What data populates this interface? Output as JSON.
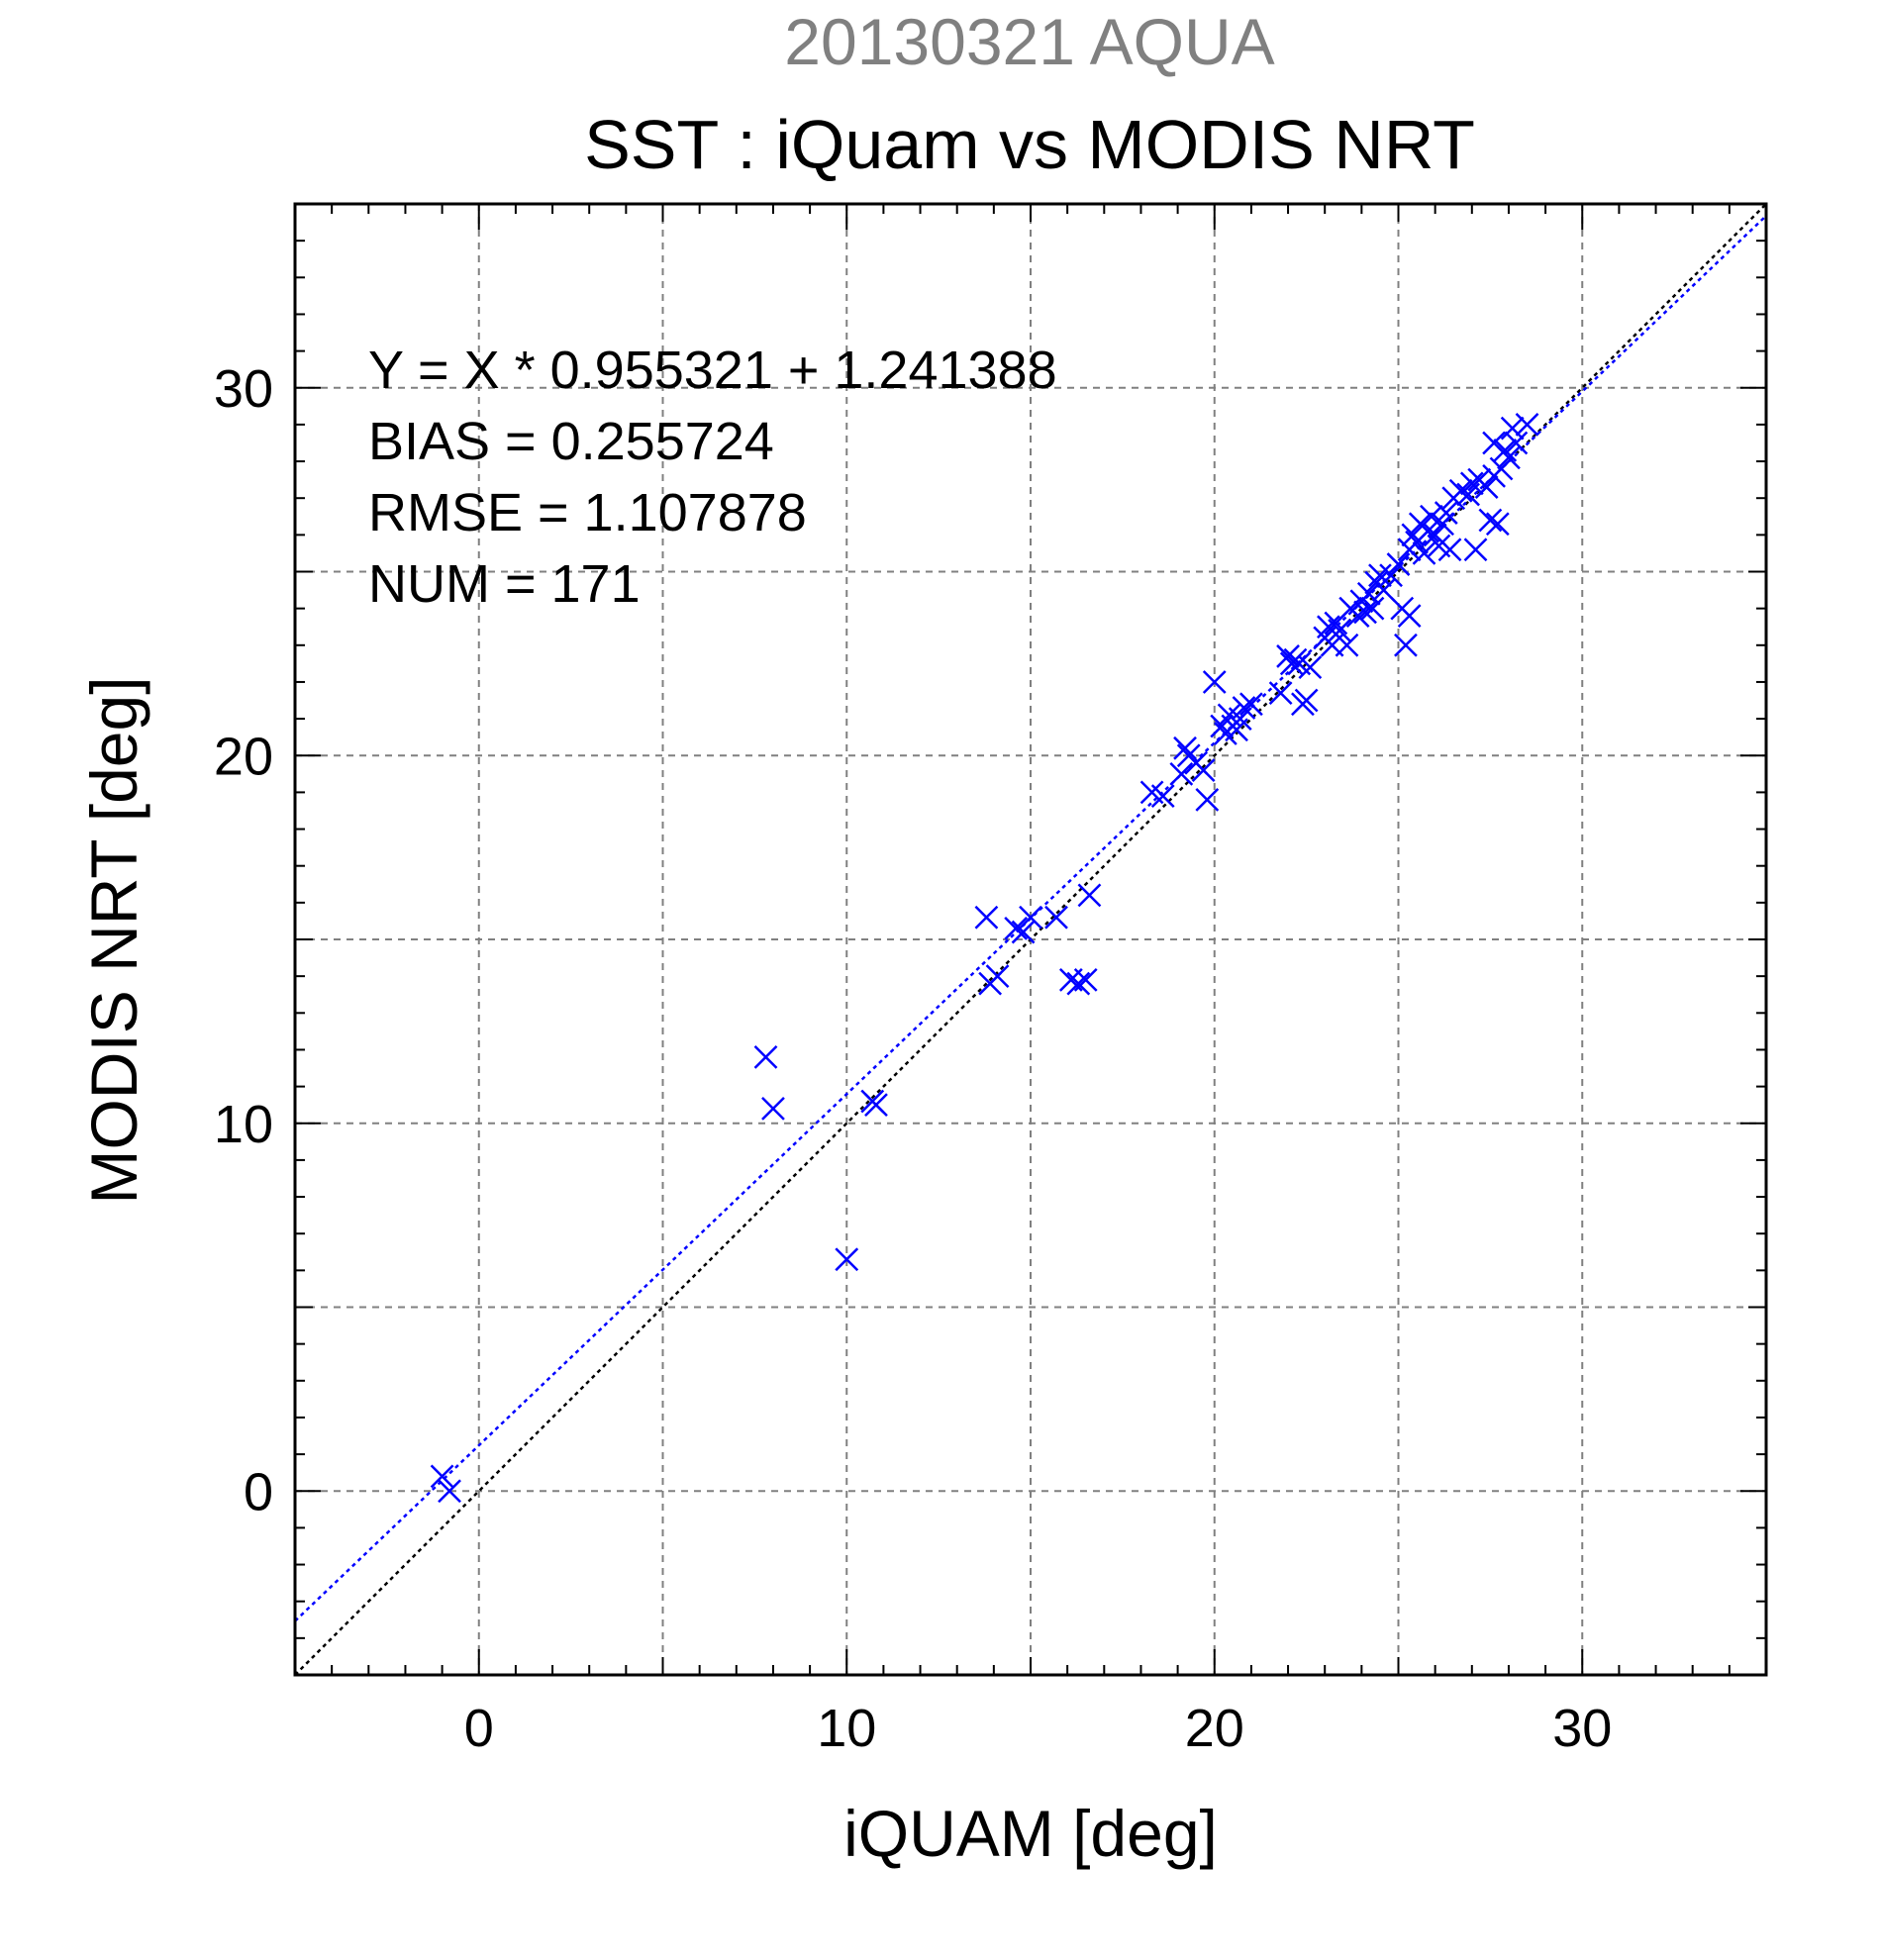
{
  "chart_data": {
    "type": "scatter",
    "supertitle": "20130321 AQUA",
    "title": "SST : iQuam vs MODIS NRT",
    "xlabel": "iQUAM [deg]",
    "ylabel": "MODIS NRT [deg]",
    "xlim": [
      -5,
      35
    ],
    "ylim": [
      -5,
      35
    ],
    "major_ticks": [
      0,
      10,
      20,
      30
    ],
    "grid_ticks": [
      0,
      5,
      10,
      15,
      20,
      25,
      30
    ],
    "minor_tick_step": 1,
    "grid": true,
    "stats": [
      "Y = X * 0.955321 + 1.241388",
      "BIAS = 0.255724",
      "RMSE = 1.107878",
      "NUM = 171"
    ],
    "fit": {
      "slope": 0.955321,
      "intercept": 1.241388
    },
    "colors": {
      "points": "#0000ff",
      "fit_line": "#0000ff",
      "identity_line": "#000000",
      "grid": "#808080",
      "supertitle": "#808080"
    },
    "points": [
      [
        -1.0,
        0.4
      ],
      [
        -0.8,
        0.0
      ],
      [
        7.8,
        11.8
      ],
      [
        8.0,
        10.4
      ],
      [
        10.0,
        6.3
      ],
      [
        10.7,
        10.6
      ],
      [
        10.8,
        10.5
      ],
      [
        13.8,
        15.6
      ],
      [
        13.9,
        13.8
      ],
      [
        14.1,
        14.0
      ],
      [
        14.6,
        15.3
      ],
      [
        14.8,
        15.2
      ],
      [
        15.0,
        15.6
      ],
      [
        15.7,
        15.6
      ],
      [
        16.1,
        13.9
      ],
      [
        16.3,
        13.8
      ],
      [
        16.5,
        13.9
      ],
      [
        16.6,
        16.2
      ],
      [
        18.3,
        19.0
      ],
      [
        18.6,
        18.9
      ],
      [
        19.1,
        19.5
      ],
      [
        19.2,
        20.2
      ],
      [
        19.3,
        20.0
      ],
      [
        19.5,
        19.8
      ],
      [
        19.7,
        19.6
      ],
      [
        19.8,
        18.8
      ],
      [
        20.0,
        22.0
      ],
      [
        20.2,
        20.8
      ],
      [
        20.3,
        20.6
      ],
      [
        20.4,
        21.1
      ],
      [
        20.5,
        20.8
      ],
      [
        20.6,
        20.7
      ],
      [
        20.7,
        21.0
      ],
      [
        20.8,
        21.3
      ],
      [
        21.0,
        21.4
      ],
      [
        21.8,
        21.7
      ],
      [
        22.0,
        22.7
      ],
      [
        22.1,
        22.5
      ],
      [
        22.2,
        22.6
      ],
      [
        22.3,
        22.5
      ],
      [
        22.4,
        21.4
      ],
      [
        22.5,
        21.5
      ],
      [
        22.6,
        22.4
      ],
      [
        23.0,
        23.2
      ],
      [
        23.1,
        23.5
      ],
      [
        23.2,
        23.0
      ],
      [
        23.3,
        23.6
      ],
      [
        23.4,
        23.4
      ],
      [
        23.6,
        23.0
      ],
      [
        23.7,
        24.0
      ],
      [
        23.9,
        23.8
      ],
      [
        24.0,
        24.2
      ],
      [
        24.1,
        23.9
      ],
      [
        24.2,
        24.4
      ],
      [
        24.3,
        24.0
      ],
      [
        24.4,
        24.7
      ],
      [
        24.5,
        24.9
      ],
      [
        24.6,
        24.5
      ],
      [
        24.8,
        24.9
      ],
      [
        25.0,
        25.2
      ],
      [
        25.1,
        24.0
      ],
      [
        25.2,
        23.0
      ],
      [
        25.3,
        23.8
      ],
      [
        25.3,
        25.6
      ],
      [
        25.4,
        26.0
      ],
      [
        25.5,
        25.8
      ],
      [
        25.6,
        26.3
      ],
      [
        25.7,
        25.5
      ],
      [
        25.8,
        26.1
      ],
      [
        25.9,
        26.5
      ],
      [
        26.0,
        26.0
      ],
      [
        26.1,
        25.7
      ],
      [
        26.2,
        26.3
      ],
      [
        26.3,
        26.6
      ],
      [
        26.4,
        25.6
      ],
      [
        26.5,
        27.0
      ],
      [
        26.7,
        27.2
      ],
      [
        26.9,
        27.1
      ],
      [
        27.0,
        27.4
      ],
      [
        27.1,
        25.6
      ],
      [
        27.2,
        27.5
      ],
      [
        27.4,
        27.3
      ],
      [
        27.5,
        26.4
      ],
      [
        27.6,
        27.6
      ],
      [
        27.6,
        28.5
      ],
      [
        27.7,
        26.3
      ],
      [
        27.8,
        27.8
      ],
      [
        27.9,
        28.3
      ],
      [
        28.0,
        28.1
      ],
      [
        28.1,
        28.9
      ],
      [
        28.2,
        28.5
      ],
      [
        28.5,
        29.0
      ]
    ]
  }
}
